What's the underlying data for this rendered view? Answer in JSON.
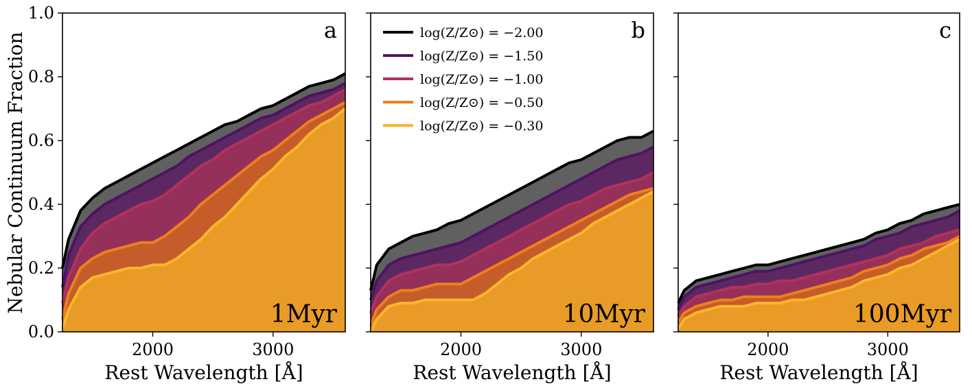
{
  "chart_data": [
    {
      "type": "area",
      "letter": "a",
      "age_label": "1Myr",
      "xlabel": "Rest Wavelength [Å]",
      "ylabel": "Nebular Continuum Fraction",
      "xlim": [
        1250,
        3600
      ],
      "ylim": [
        0,
        1.0
      ],
      "x_ticks": [
        2000,
        3000
      ],
      "x_tick_labels": [
        "2000",
        "3000"
      ],
      "y_ticks": [
        0.0,
        0.2,
        0.4,
        0.6,
        0.8,
        1.0
      ],
      "y_tick_labels": [
        "0.0",
        "0.2",
        "0.4",
        "0.6",
        "0.8",
        "1.0"
      ],
      "grid": false,
      "x": [
        1250,
        1300,
        1400,
        1500,
        1600,
        1700,
        1800,
        1900,
        2000,
        2100,
        2200,
        2300,
        2400,
        2500,
        2600,
        2700,
        2800,
        2900,
        3000,
        3100,
        3200,
        3300,
        3400,
        3500,
        3600
      ],
      "series": [
        {
          "name": "log(Z/Z⊙) = −2.00",
          "values": [
            0.2,
            0.29,
            0.38,
            0.42,
            0.45,
            0.47,
            0.49,
            0.51,
            0.53,
            0.55,
            0.57,
            0.59,
            0.61,
            0.63,
            0.65,
            0.66,
            0.68,
            0.7,
            0.71,
            0.73,
            0.75,
            0.77,
            0.78,
            0.79,
            0.81
          ]
        },
        {
          "name": "log(Z/Z⊙) = −1.50",
          "values": [
            0.14,
            0.24,
            0.33,
            0.37,
            0.4,
            0.42,
            0.44,
            0.46,
            0.48,
            0.5,
            0.52,
            0.55,
            0.57,
            0.59,
            0.61,
            0.63,
            0.65,
            0.67,
            0.68,
            0.7,
            0.72,
            0.74,
            0.75,
            0.76,
            0.78
          ]
        },
        {
          "name": "log(Z/Z⊙) = −1.00",
          "values": [
            0.09,
            0.17,
            0.26,
            0.31,
            0.34,
            0.36,
            0.38,
            0.4,
            0.41,
            0.43,
            0.46,
            0.49,
            0.52,
            0.54,
            0.57,
            0.59,
            0.61,
            0.63,
            0.65,
            0.67,
            0.69,
            0.71,
            0.72,
            0.74,
            0.76
          ]
        },
        {
          "name": "log(Z/Z⊙) = −0.50",
          "values": [
            0.04,
            0.12,
            0.2,
            0.23,
            0.25,
            0.26,
            0.27,
            0.28,
            0.28,
            0.3,
            0.33,
            0.36,
            0.4,
            0.43,
            0.46,
            0.49,
            0.52,
            0.55,
            0.57,
            0.6,
            0.63,
            0.66,
            0.68,
            0.7,
            0.72
          ]
        },
        {
          "name": "log(Z/Z⊙) = −0.30",
          "values": [
            0.01,
            0.07,
            0.14,
            0.17,
            0.18,
            0.19,
            0.2,
            0.2,
            0.21,
            0.21,
            0.23,
            0.26,
            0.29,
            0.33,
            0.36,
            0.4,
            0.44,
            0.48,
            0.51,
            0.55,
            0.58,
            0.62,
            0.65,
            0.67,
            0.7
          ]
        }
      ]
    },
    {
      "type": "area",
      "letter": "b",
      "age_label": "10Myr",
      "xlabel": "Rest Wavelength [Å]",
      "xlim": [
        1250,
        3600
      ],
      "ylim": [
        0,
        1.0
      ],
      "x_ticks": [
        2000,
        3000
      ],
      "x_tick_labels": [
        "2000",
        "3000"
      ],
      "grid": false,
      "legend_position": "top-left",
      "x": [
        1250,
        1300,
        1400,
        1500,
        1600,
        1700,
        1800,
        1900,
        2000,
        2100,
        2200,
        2300,
        2400,
        2500,
        2600,
        2700,
        2800,
        2900,
        3000,
        3100,
        3200,
        3300,
        3400,
        3500,
        3600
      ],
      "series": [
        {
          "name": "log(Z/Z⊙) = −2.00",
          "values": [
            0.13,
            0.21,
            0.26,
            0.28,
            0.3,
            0.31,
            0.32,
            0.34,
            0.35,
            0.37,
            0.39,
            0.41,
            0.43,
            0.45,
            0.47,
            0.49,
            0.51,
            0.53,
            0.54,
            0.56,
            0.58,
            0.6,
            0.61,
            0.61,
            0.63
          ]
        },
        {
          "name": "log(Z/Z⊙) = −1.50",
          "values": [
            0.1,
            0.16,
            0.21,
            0.23,
            0.24,
            0.25,
            0.26,
            0.27,
            0.28,
            0.3,
            0.32,
            0.34,
            0.36,
            0.38,
            0.4,
            0.42,
            0.44,
            0.46,
            0.48,
            0.5,
            0.52,
            0.54,
            0.55,
            0.56,
            0.58
          ]
        },
        {
          "name": "log(Z/Z⊙) = −1.00",
          "values": [
            0.06,
            0.11,
            0.16,
            0.18,
            0.19,
            0.2,
            0.21,
            0.21,
            0.22,
            0.24,
            0.26,
            0.28,
            0.3,
            0.32,
            0.34,
            0.36,
            0.38,
            0.4,
            0.41,
            0.43,
            0.45,
            0.46,
            0.47,
            0.48,
            0.5
          ]
        },
        {
          "name": "log(Z/Z⊙) = −0.50",
          "values": [
            0.02,
            0.07,
            0.11,
            0.13,
            0.13,
            0.14,
            0.15,
            0.15,
            0.15,
            0.17,
            0.19,
            0.21,
            0.23,
            0.25,
            0.27,
            0.29,
            0.31,
            0.33,
            0.35,
            0.37,
            0.39,
            0.41,
            0.43,
            0.44,
            0.45
          ]
        },
        {
          "name": "log(Z/Z⊙) = −0.30",
          "values": [
            0.0,
            0.04,
            0.08,
            0.09,
            0.09,
            0.1,
            0.1,
            0.1,
            0.1,
            0.1,
            0.12,
            0.15,
            0.18,
            0.2,
            0.23,
            0.25,
            0.27,
            0.29,
            0.31,
            0.34,
            0.36,
            0.38,
            0.4,
            0.42,
            0.44
          ]
        }
      ]
    },
    {
      "type": "area",
      "letter": "c",
      "age_label": "100Myr",
      "xlabel": "Rest Wavelength [Å]",
      "xlim": [
        1250,
        3600
      ],
      "ylim": [
        0,
        1.0
      ],
      "x_ticks": [
        2000,
        3000
      ],
      "x_tick_labels": [
        "2000",
        "3000"
      ],
      "grid": false,
      "x": [
        1250,
        1300,
        1400,
        1500,
        1600,
        1700,
        1800,
        1900,
        2000,
        2100,
        2200,
        2300,
        2400,
        2500,
        2600,
        2700,
        2800,
        2900,
        3000,
        3100,
        3200,
        3300,
        3400,
        3500,
        3600
      ],
      "series": [
        {
          "name": "log(Z/Z⊙) = −2.00",
          "values": [
            0.09,
            0.13,
            0.16,
            0.17,
            0.18,
            0.19,
            0.2,
            0.21,
            0.21,
            0.22,
            0.23,
            0.24,
            0.25,
            0.26,
            0.27,
            0.28,
            0.29,
            0.31,
            0.32,
            0.34,
            0.35,
            0.37,
            0.38,
            0.39,
            0.4
          ]
        },
        {
          "name": "log(Z/Z⊙) = −1.50",
          "values": [
            0.07,
            0.11,
            0.14,
            0.15,
            0.16,
            0.17,
            0.18,
            0.19,
            0.19,
            0.2,
            0.21,
            0.22,
            0.23,
            0.24,
            0.25,
            0.26,
            0.27,
            0.29,
            0.3,
            0.31,
            0.33,
            0.34,
            0.35,
            0.36,
            0.38
          ]
        },
        {
          "name": "log(Z/Z⊙) = −1.00",
          "values": [
            0.05,
            0.08,
            0.11,
            0.12,
            0.13,
            0.14,
            0.14,
            0.15,
            0.15,
            0.16,
            0.16,
            0.17,
            0.18,
            0.19,
            0.2,
            0.21,
            0.22,
            0.23,
            0.24,
            0.26,
            0.27,
            0.28,
            0.3,
            0.31,
            0.32
          ]
        },
        {
          "name": "log(Z/Z⊙) = −0.50",
          "values": [
            0.03,
            0.06,
            0.08,
            0.09,
            0.1,
            0.1,
            0.11,
            0.11,
            0.11,
            0.11,
            0.12,
            0.13,
            0.14,
            0.15,
            0.16,
            0.17,
            0.19,
            0.2,
            0.21,
            0.23,
            0.24,
            0.26,
            0.27,
            0.28,
            0.3
          ]
        },
        {
          "name": "log(Z/Z⊙) = −0.30",
          "values": [
            0.01,
            0.04,
            0.06,
            0.07,
            0.08,
            0.08,
            0.08,
            0.09,
            0.09,
            0.09,
            0.1,
            0.1,
            0.11,
            0.12,
            0.13,
            0.14,
            0.16,
            0.17,
            0.18,
            0.2,
            0.21,
            0.23,
            0.25,
            0.27,
            0.29
          ]
        }
      ]
    }
  ],
  "series_colors": {
    "lines": [
      "#000000",
      "#4e1264",
      "#b3315b",
      "#ef7f1a",
      "#fcb52c"
    ],
    "fills": [
      "#606060",
      "#5c2862",
      "#94305a",
      "#c45d2a",
      "#e89b26"
    ]
  }
}
